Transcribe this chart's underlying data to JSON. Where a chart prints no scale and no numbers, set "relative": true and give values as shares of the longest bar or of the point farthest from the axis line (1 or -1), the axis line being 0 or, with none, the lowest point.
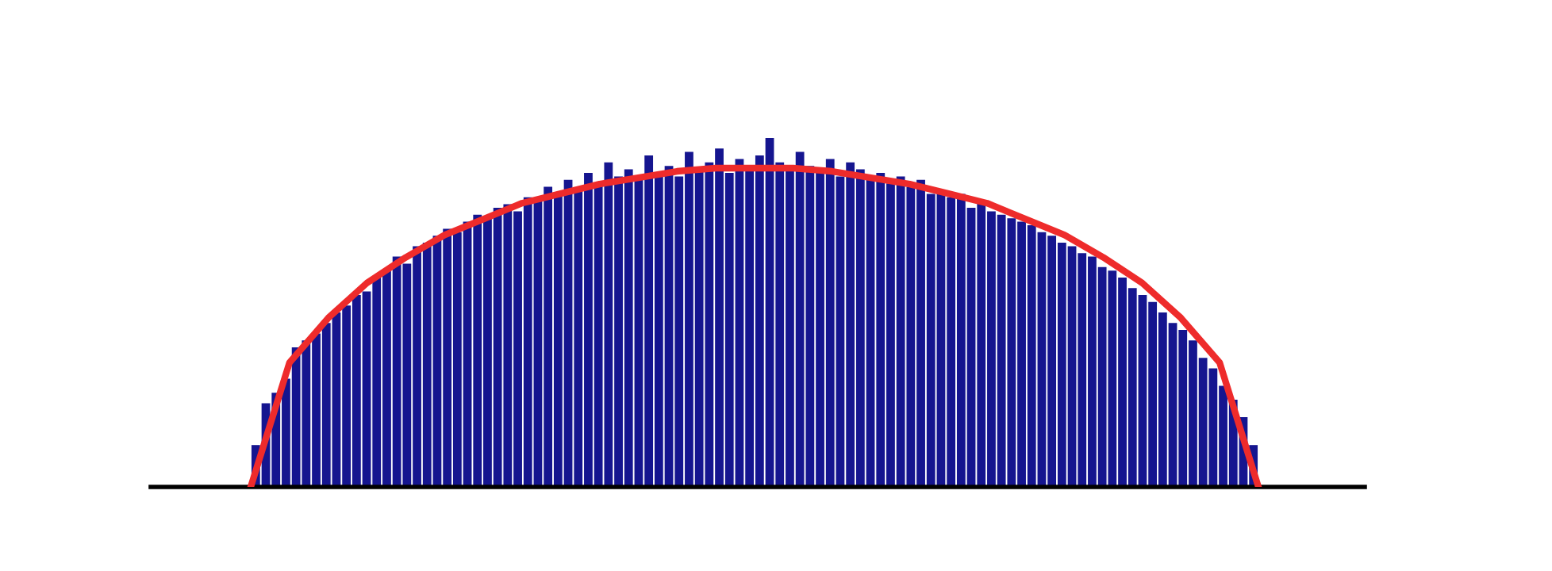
{
  "chart_data": [
    {
      "type": "bar",
      "relative": true,
      "color": "#15158f",
      "categories": [
        null,
        null,
        null,
        null,
        null,
        null,
        null,
        null,
        null,
        null,
        null,
        null,
        null,
        null,
        null,
        null,
        null,
        null,
        null,
        null,
        null,
        null,
        null,
        null,
        null,
        null,
        null,
        null,
        null,
        null,
        null,
        null,
        null,
        null,
        null,
        null,
        null,
        null,
        null,
        null,
        null,
        null,
        null,
        null,
        null,
        null,
        null,
        null,
        null,
        null,
        null,
        null,
        null,
        null,
        null,
        null,
        null,
        null,
        null,
        null,
        null,
        null,
        null,
        null,
        null,
        null,
        null,
        null,
        null,
        null,
        null,
        null,
        null,
        null,
        null,
        null,
        null,
        null,
        null,
        null,
        null,
        null,
        null,
        null,
        null,
        null,
        null,
        null,
        null,
        null,
        null,
        null,
        null,
        null,
        null,
        null,
        null,
        null,
        null,
        null
      ],
      "values": [
        0.12,
        0.24,
        0.27,
        0.31,
        0.4,
        0.42,
        0.44,
        0.47,
        0.5,
        0.52,
        0.55,
        0.56,
        0.6,
        0.62,
        0.66,
        0.64,
        0.69,
        0.7,
        0.72,
        0.74,
        0.73,
        0.76,
        0.78,
        0.77,
        0.8,
        0.81,
        0.79,
        0.83,
        0.82,
        0.86,
        0.84,
        0.88,
        0.85,
        0.9,
        0.87,
        0.93,
        0.89,
        0.91,
        0.88,
        0.95,
        0.9,
        0.92,
        0.89,
        0.96,
        0.91,
        0.93,
        0.97,
        0.9,
        0.94,
        0.92,
        0.95,
        1.0,
        0.93,
        0.91,
        0.96,
        0.92,
        0.9,
        0.94,
        0.89,
        0.93,
        0.91,
        0.88,
        0.9,
        0.87,
        0.89,
        0.86,
        0.88,
        0.84,
        0.85,
        0.83,
        0.84,
        0.8,
        0.82,
        0.79,
        0.78,
        0.77,
        0.76,
        0.75,
        0.73,
        0.72,
        0.7,
        0.69,
        0.67,
        0.66,
        0.63,
        0.62,
        0.6,
        0.57,
        0.55,
        0.53,
        0.5,
        0.47,
        0.45,
        0.42,
        0.37,
        0.34,
        0.29,
        0.25,
        0.2,
        0.12
      ]
    },
    {
      "type": "line",
      "relative": true,
      "color": "#ee2b2b",
      "categories": [
        null,
        null,
        null,
        null,
        null,
        null,
        null,
        null,
        null,
        null,
        null,
        null,
        null,
        null,
        null,
        null,
        null,
        null,
        null,
        null,
        null,
        null,
        null,
        null,
        null,
        null,
        null
      ],
      "values": [
        0,
        0.39,
        0.53,
        0.64,
        0.72,
        0.79,
        0.84,
        0.89,
        0.92,
        0.95,
        0.97,
        0.99,
        1.0,
        1.0,
        1.0,
        0.99,
        0.97,
        0.95,
        0.92,
        0.89,
        0.84,
        0.79,
        0.72,
        0.64,
        0.53,
        0.39,
        0
      ]
    }
  ]
}
